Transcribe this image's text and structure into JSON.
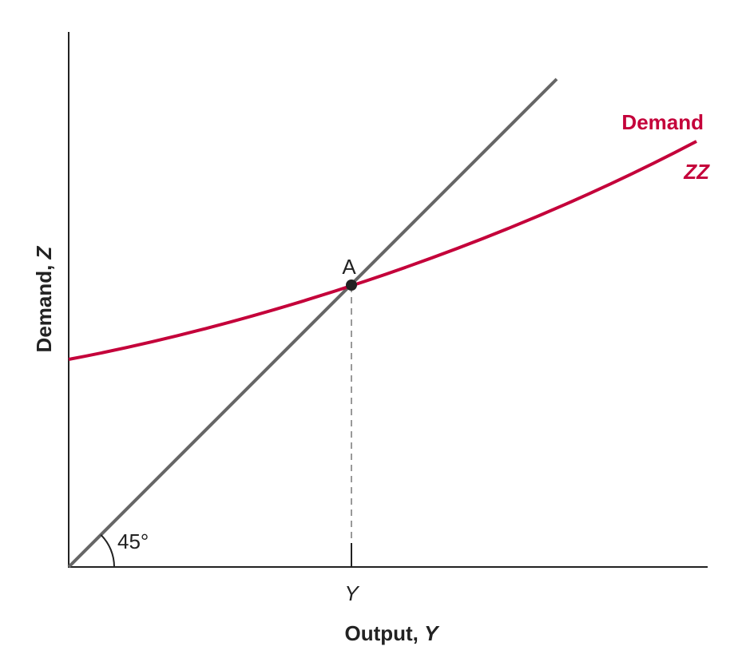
{
  "axes": {
    "x_label": {
      "text": "Output, ",
      "variable": "Y"
    },
    "y_label": {
      "text": "Demand, ",
      "variable": "Z"
    }
  },
  "x_marker": "Y",
  "angle_label": "45°",
  "point_label": "A",
  "curve_label": {
    "name": "Demand",
    "symbol": "ZZ"
  }
}
